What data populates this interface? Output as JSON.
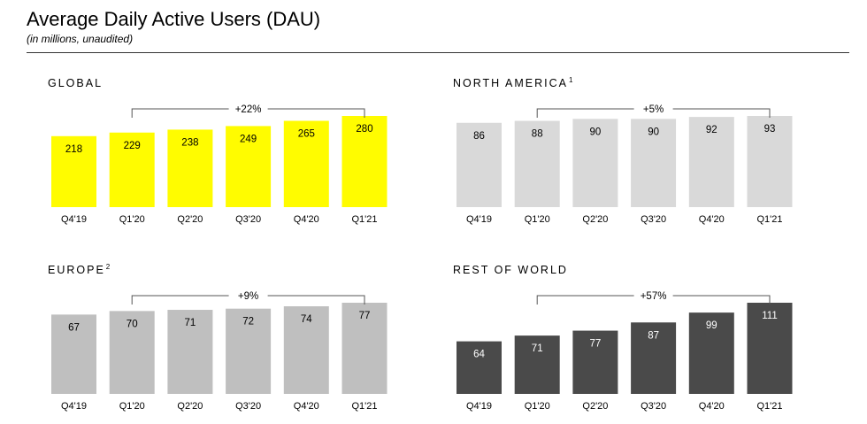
{
  "header": {
    "title": "Average Daily Active Users (DAU)",
    "subtitle": "(in millions, unaudited)"
  },
  "chart_data": [
    {
      "type": "bar",
      "title": "GLOBAL",
      "footnote": "",
      "categories": [
        "Q4'19",
        "Q1'20",
        "Q2'20",
        "Q3'20",
        "Q4'20",
        "Q1'21"
      ],
      "values": [
        218,
        229,
        238,
        249,
        265,
        280
      ],
      "growth_label": "+22%",
      "growth_span": [
        "Q1'20",
        "Q1'21"
      ],
      "ylim": [
        0,
        280
      ],
      "bar_color": "#FFFC00",
      "label_color": "#000000"
    },
    {
      "type": "bar",
      "title": "NORTH AMERICA",
      "footnote": "1",
      "categories": [
        "Q4'19",
        "Q1'20",
        "Q2'20",
        "Q3'20",
        "Q4'20",
        "Q1'21"
      ],
      "values": [
        86,
        88,
        90,
        90,
        92,
        93
      ],
      "growth_label": "+5%",
      "growth_span": [
        "Q1'20",
        "Q1'21"
      ],
      "ylim": [
        0,
        93
      ],
      "bar_color": "#D9D9D9",
      "label_color": "#000000"
    },
    {
      "type": "bar",
      "title": "EUROPE",
      "footnote": "2",
      "categories": [
        "Q4'19",
        "Q1'20",
        "Q2'20",
        "Q3'20",
        "Q4'20",
        "Q1'21"
      ],
      "values": [
        67,
        70,
        71,
        72,
        74,
        77
      ],
      "growth_label": "+9%",
      "growth_span": [
        "Q1'20",
        "Q1'21"
      ],
      "ylim": [
        0,
        77
      ],
      "bar_color": "#BFBFBF",
      "label_color": "#000000"
    },
    {
      "type": "bar",
      "title": "REST OF WORLD",
      "footnote": "",
      "categories": [
        "Q4'19",
        "Q1'20",
        "Q2'20",
        "Q3'20",
        "Q4'20",
        "Q1'21"
      ],
      "values": [
        64,
        71,
        77,
        87,
        99,
        111
      ],
      "growth_label": "+57%",
      "growth_span": [
        "Q1'20",
        "Q1'21"
      ],
      "ylim": [
        0,
        111
      ],
      "bar_color": "#4A4A4A",
      "label_color": "#FFFFFF"
    }
  ]
}
